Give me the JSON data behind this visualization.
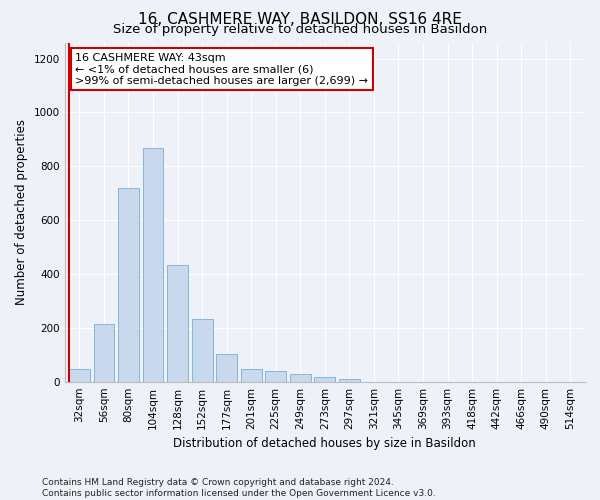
{
  "title": "16, CASHMERE WAY, BASILDON, SS16 4RE",
  "subtitle": "Size of property relative to detached houses in Basildon",
  "xlabel": "Distribution of detached houses by size in Basildon",
  "ylabel": "Number of detached properties",
  "categories": [
    "32sqm",
    "56sqm",
    "80sqm",
    "104sqm",
    "128sqm",
    "152sqm",
    "177sqm",
    "201sqm",
    "225sqm",
    "249sqm",
    "273sqm",
    "297sqm",
    "321sqm",
    "345sqm",
    "369sqm",
    "393sqm",
    "418sqm",
    "442sqm",
    "466sqm",
    "490sqm",
    "514sqm"
  ],
  "values": [
    46,
    213,
    720,
    868,
    435,
    232,
    103,
    46,
    38,
    28,
    18,
    10,
    0,
    0,
    0,
    0,
    0,
    0,
    0,
    0,
    0
  ],
  "bar_color": "#c8d9ee",
  "bar_edge_color": "#7aacd4",
  "annotation_line1": "16 CASHMERE WAY: 43sqm",
  "annotation_line2": "← <1% of detached houses are smaller (6)",
  "annotation_line3": ">99% of semi-detached houses are larger (2,699) →",
  "footer": "Contains HM Land Registry data © Crown copyright and database right 2024.\nContains public sector information licensed under the Open Government Licence v3.0.",
  "ylim": [
    0,
    1260
  ],
  "yticks": [
    0,
    200,
    400,
    600,
    800,
    1000,
    1200
  ],
  "title_fontsize": 11,
  "subtitle_fontsize": 9.5,
  "ylabel_fontsize": 8.5,
  "xlabel_fontsize": 8.5,
  "tick_fontsize": 7.5,
  "ann_fontsize": 8,
  "footer_fontsize": 6.5,
  "bg_color": "#eef2f8",
  "plot_bg_color": "#eef2f8",
  "grid_color": "white",
  "red_line_color": "#cc0000",
  "ann_box_edge_color": "#cc0000",
  "ann_box_face_color": "white"
}
